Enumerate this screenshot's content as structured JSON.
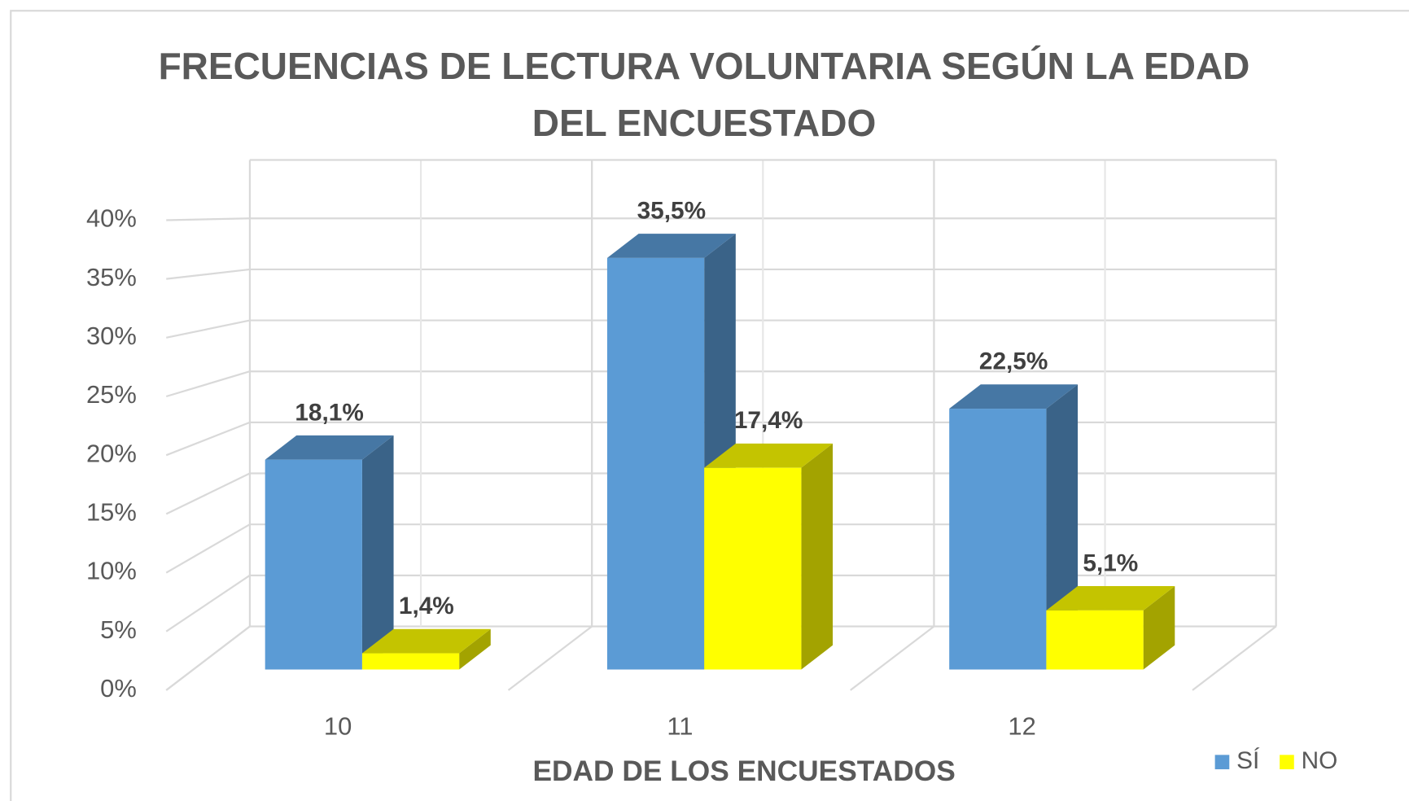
{
  "chart_data": {
    "type": "bar3d",
    "title": "FRECUENCIAS DE LECTURA VOLUNTARIA SEGÚN LA EDAD DEL ENCUESTADO",
    "x_label": "EDAD DE LOS ENCUESTADOS",
    "categories": [
      "10",
      "11",
      "12"
    ],
    "series": [
      {
        "name": "SÍ",
        "color": "#5b9bd5",
        "values": [
          18.1,
          35.5,
          22.5
        ],
        "value_labels": [
          "18,1%",
          "35,5%",
          "22,5%"
        ]
      },
      {
        "name": "NO",
        "color": "#ffff00",
        "values": [
          1.4,
          17.4,
          5.1
        ],
        "value_labels": [
          "1,4%",
          "17,4%",
          "5,1%"
        ]
      }
    ],
    "ylim": [
      0,
      40
    ],
    "yticks": [
      {
        "value": 0,
        "label": "0%"
      },
      {
        "value": 5,
        "label": "5%"
      },
      {
        "value": 10,
        "label": "10%"
      },
      {
        "value": 15,
        "label": "15%"
      },
      {
        "value": 20,
        "label": "20%"
      },
      {
        "value": 25,
        "label": "25%"
      },
      {
        "value": 30,
        "label": "30%"
      },
      {
        "value": 35,
        "label": "35%"
      },
      {
        "value": 40,
        "label": "40%"
      }
    ],
    "grid": true,
    "legend": "bottom-right"
  }
}
